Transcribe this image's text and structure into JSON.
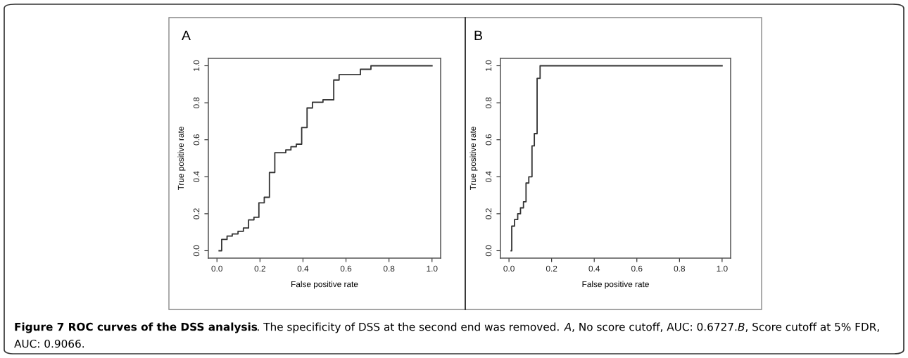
{
  "chart_data": [
    {
      "type": "step",
      "title": "A",
      "xlabel": "False positive rate",
      "ylabel": "True positive rate",
      "color": "#333333",
      "x": [
        0.01,
        0.022,
        0.047,
        0.071,
        0.098,
        0.123,
        0.147,
        0.172,
        0.195,
        0.22,
        0.244,
        0.269,
        0.32,
        0.344,
        0.369,
        0.394,
        0.419,
        0.444,
        0.493,
        0.543,
        0.568,
        0.667,
        0.716,
        1.0
      ],
      "values": [
        0,
        0.061,
        0.079,
        0.091,
        0.105,
        0.123,
        0.167,
        0.181,
        0.259,
        0.289,
        0.423,
        0.53,
        0.545,
        0.562,
        0.576,
        0.666,
        0.772,
        0.803,
        0.816,
        0.923,
        0.952,
        0.981,
        1.0,
        1.0
      ],
      "xlim": [
        -0.04,
        1.04
      ],
      "ylim": [
        -0.04,
        1.04
      ],
      "xticks": [
        {
          "value": 0,
          "label": "0.0"
        },
        {
          "value": 0.2,
          "label": "0.2"
        },
        {
          "value": 0.4,
          "label": "0.4"
        },
        {
          "value": 0.6,
          "label": "0.6"
        },
        {
          "value": 0.8,
          "label": "0.8"
        },
        {
          "value": 1,
          "label": "1.0"
        }
      ],
      "yticks": [
        {
          "value": 0,
          "label": "0.0"
        },
        {
          "value": 0.2,
          "label": "0.2"
        },
        {
          "value": 0.4,
          "label": "0.4"
        },
        {
          "value": 0.6,
          "label": "0.6"
        },
        {
          "value": 0.8,
          "label": "0.8"
        },
        {
          "value": 1,
          "label": "1.0"
        }
      ],
      "grid": false,
      "annotations": [
        "Figure 7 ROC curves of the DSS analysis",
        ". The specificity of DSS at the second end was removed. ",
        "A",
        ", No score cutoff, AUC: 0.6727.",
        "B",
        ", Score cutoff at 5% FDR, AUC: 0.9066."
      ]
    },
    {
      "type": "step",
      "title": "B",
      "xlabel": "False positive rate",
      "ylabel": "True positive rate",
      "color": "#333333",
      "x": [
        0.01,
        0.013,
        0.026,
        0.041,
        0.054,
        0.068,
        0.08,
        0.093,
        0.108,
        0.119,
        0.132,
        0.146,
        1.0
      ],
      "values": [
        0,
        0.133,
        0.169,
        0.2,
        0.232,
        0.265,
        0.366,
        0.4,
        0.567,
        0.633,
        0.932,
        1.0,
        1.0
      ],
      "xlim": [
        -0.04,
        1.04
      ],
      "ylim": [
        -0.04,
        1.04
      ],
      "xticks": [
        {
          "value": 0,
          "label": "0.0"
        },
        {
          "value": 0.2,
          "label": "0.2"
        },
        {
          "value": 0.4,
          "label": "0.4"
        },
        {
          "value": 0.6,
          "label": "0.6"
        },
        {
          "value": 0.8,
          "label": "0.8"
        },
        {
          "value": 1,
          "label": "1.0"
        }
      ],
      "yticks": [
        {
          "value": 0,
          "label": "0.0"
        },
        {
          "value": 0.2,
          "label": "0.2"
        },
        {
          "value": 0.4,
          "label": "0.4"
        },
        {
          "value": 0.6,
          "label": "0.6"
        },
        {
          "value": 0.8,
          "label": "0.8"
        },
        {
          "value": 1,
          "label": "1.0"
        }
      ],
      "grid": false
    }
  ]
}
